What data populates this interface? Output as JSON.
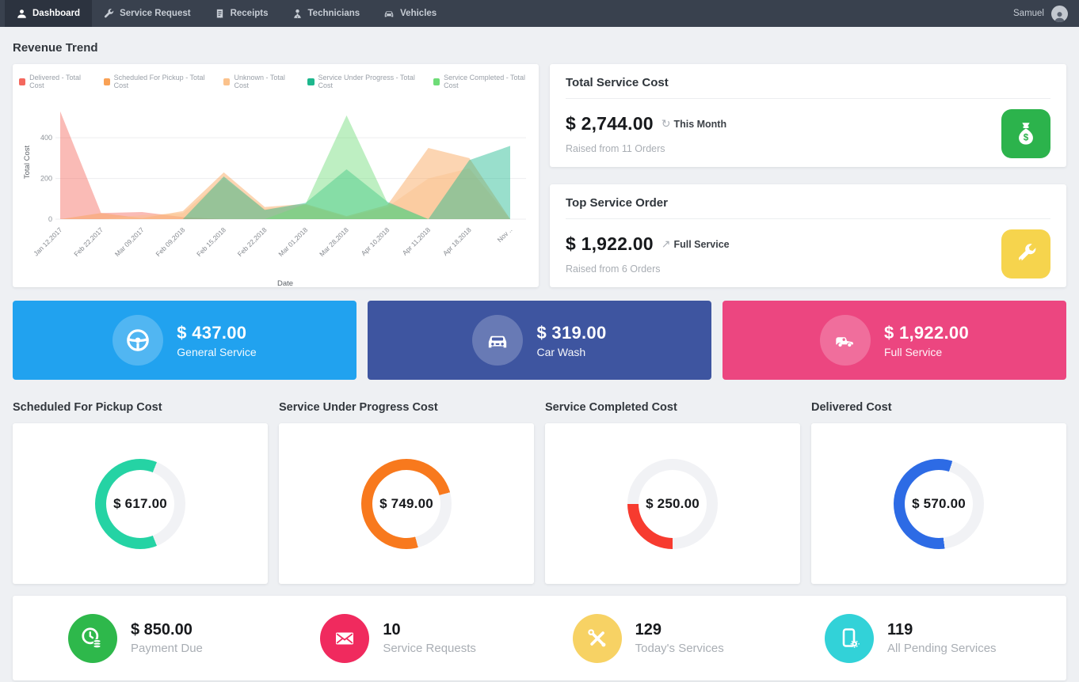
{
  "nav": {
    "items": [
      {
        "label": "Dashboard",
        "icon": "dashboard-person-icon",
        "active": true
      },
      {
        "label": "Service Request",
        "icon": "wrench-icon",
        "active": false
      },
      {
        "label": "Receipts",
        "icon": "receipt-icon",
        "active": false
      },
      {
        "label": "Technicians",
        "icon": "technician-icon",
        "active": false
      },
      {
        "label": "Vehicles",
        "icon": "car-icon",
        "active": false
      }
    ],
    "user_name": "Samuel"
  },
  "page_title": "Revenue Trend",
  "chart_data": {
    "type": "area",
    "title": "Revenue Trend",
    "xlabel": "Date",
    "ylabel": "Total Cost",
    "ylim": [
      0,
      560
    ],
    "yticks": [
      0,
      200,
      400
    ],
    "grid": true,
    "legend_position": "top",
    "categories": [
      "Jan 12,2017",
      "Feb 22,2017",
      "Mar 09,2017",
      "Feb 09,2018",
      "Feb 15,2018",
      "Feb 22,2018",
      "Mar 01,2018",
      "Mar 28,2018",
      "Apr 10,2018",
      "Apr 11,2018",
      "Apr 18,2018",
      "Nov .."
    ],
    "series": [
      {
        "name": "Delivered - Total Cost",
        "color": "#f4685e",
        "values": [
          530,
          30,
          35,
          10,
          0,
          0,
          0,
          0,
          0,
          0,
          0,
          0
        ]
      },
      {
        "name": "Scheduled For Pickup - Total Cost",
        "color": "#f9a155",
        "values": [
          0,
          30,
          5,
          40,
          230,
          60,
          75,
          15,
          70,
          350,
          300,
          0
        ]
      },
      {
        "name": "Unknown - Total Cost",
        "color": "#fbc28c",
        "values": [
          0,
          0,
          20,
          30,
          200,
          50,
          70,
          10,
          60,
          200,
          250,
          0
        ]
      },
      {
        "name": "Service Under Progress - Total Cost",
        "color": "#1db78d",
        "values": [
          0,
          0,
          0,
          0,
          210,
          45,
          80,
          245,
          85,
          0,
          290,
          360
        ]
      },
      {
        "name": "Service Completed - Total Cost",
        "color": "#6edc77",
        "values": [
          0,
          0,
          0,
          0,
          0,
          0,
          75,
          510,
          80,
          0,
          0,
          0
        ]
      }
    ]
  },
  "summary_cards": [
    {
      "title": "Total Service Cost",
      "amount": "$ 2,744.00",
      "tag": "This Month",
      "tag_icon_glyph": "↻",
      "subtext": "Raised from 11 Orders",
      "accent": "#2cb34c",
      "icon": "money-bag-icon"
    },
    {
      "title": "Top Service Order",
      "amount": "$ 1,922.00",
      "tag": "Full Service",
      "tag_icon_glyph": "↗",
      "subtext": "Raised from 6 Orders",
      "accent": "#f6d44d",
      "icon": "service-wrench-icon"
    }
  ],
  "banners": [
    {
      "amount": "$ 437.00",
      "label": "General Service",
      "color": "#21a2ef",
      "icon": "steering-wheel-icon"
    },
    {
      "amount": "$ 319.00",
      "label": "Car Wash",
      "color": "#3e55a0",
      "icon": "car-front-icon"
    },
    {
      "amount": "$ 1,922.00",
      "label": "Full Service",
      "color": "#ec4680",
      "icon": "truck-icon"
    }
  ],
  "donut_sections": [
    {
      "header": "Scheduled For Pickup Cost",
      "value": "$ 617.00",
      "pct": 62,
      "color": "#25d3a4",
      "track": "#f1f2f5"
    },
    {
      "header": "Service Under Progress Cost",
      "value": "$ 749.00",
      "pct": 75,
      "color": "#f8791d",
      "track": "#f1f2f5"
    },
    {
      "header": "Service Completed Cost",
      "value": "$ 250.00",
      "pct": 25,
      "color": "#f73b2f",
      "track": "#f1f2f5"
    },
    {
      "header": "Delivered Cost",
      "value": "$ 570.00",
      "pct": 57,
      "color": "#2d6be5",
      "track": "#f1f2f5"
    }
  ],
  "stats": [
    {
      "value": "$ 850.00",
      "label": "Payment Due",
      "color": "#2eb84b",
      "icon": "payment-clock-coins-icon"
    },
    {
      "value": "10",
      "label": "Service Requests",
      "color": "#f02a5e",
      "icon": "envelope-icon"
    },
    {
      "value": "129",
      "label": "Today's Services",
      "color": "#f7d264",
      "icon": "crossed-tools-icon"
    },
    {
      "value": "119",
      "label": "All Pending Services",
      "color": "#32d2d8",
      "icon": "mobile-gear-icon"
    }
  ]
}
